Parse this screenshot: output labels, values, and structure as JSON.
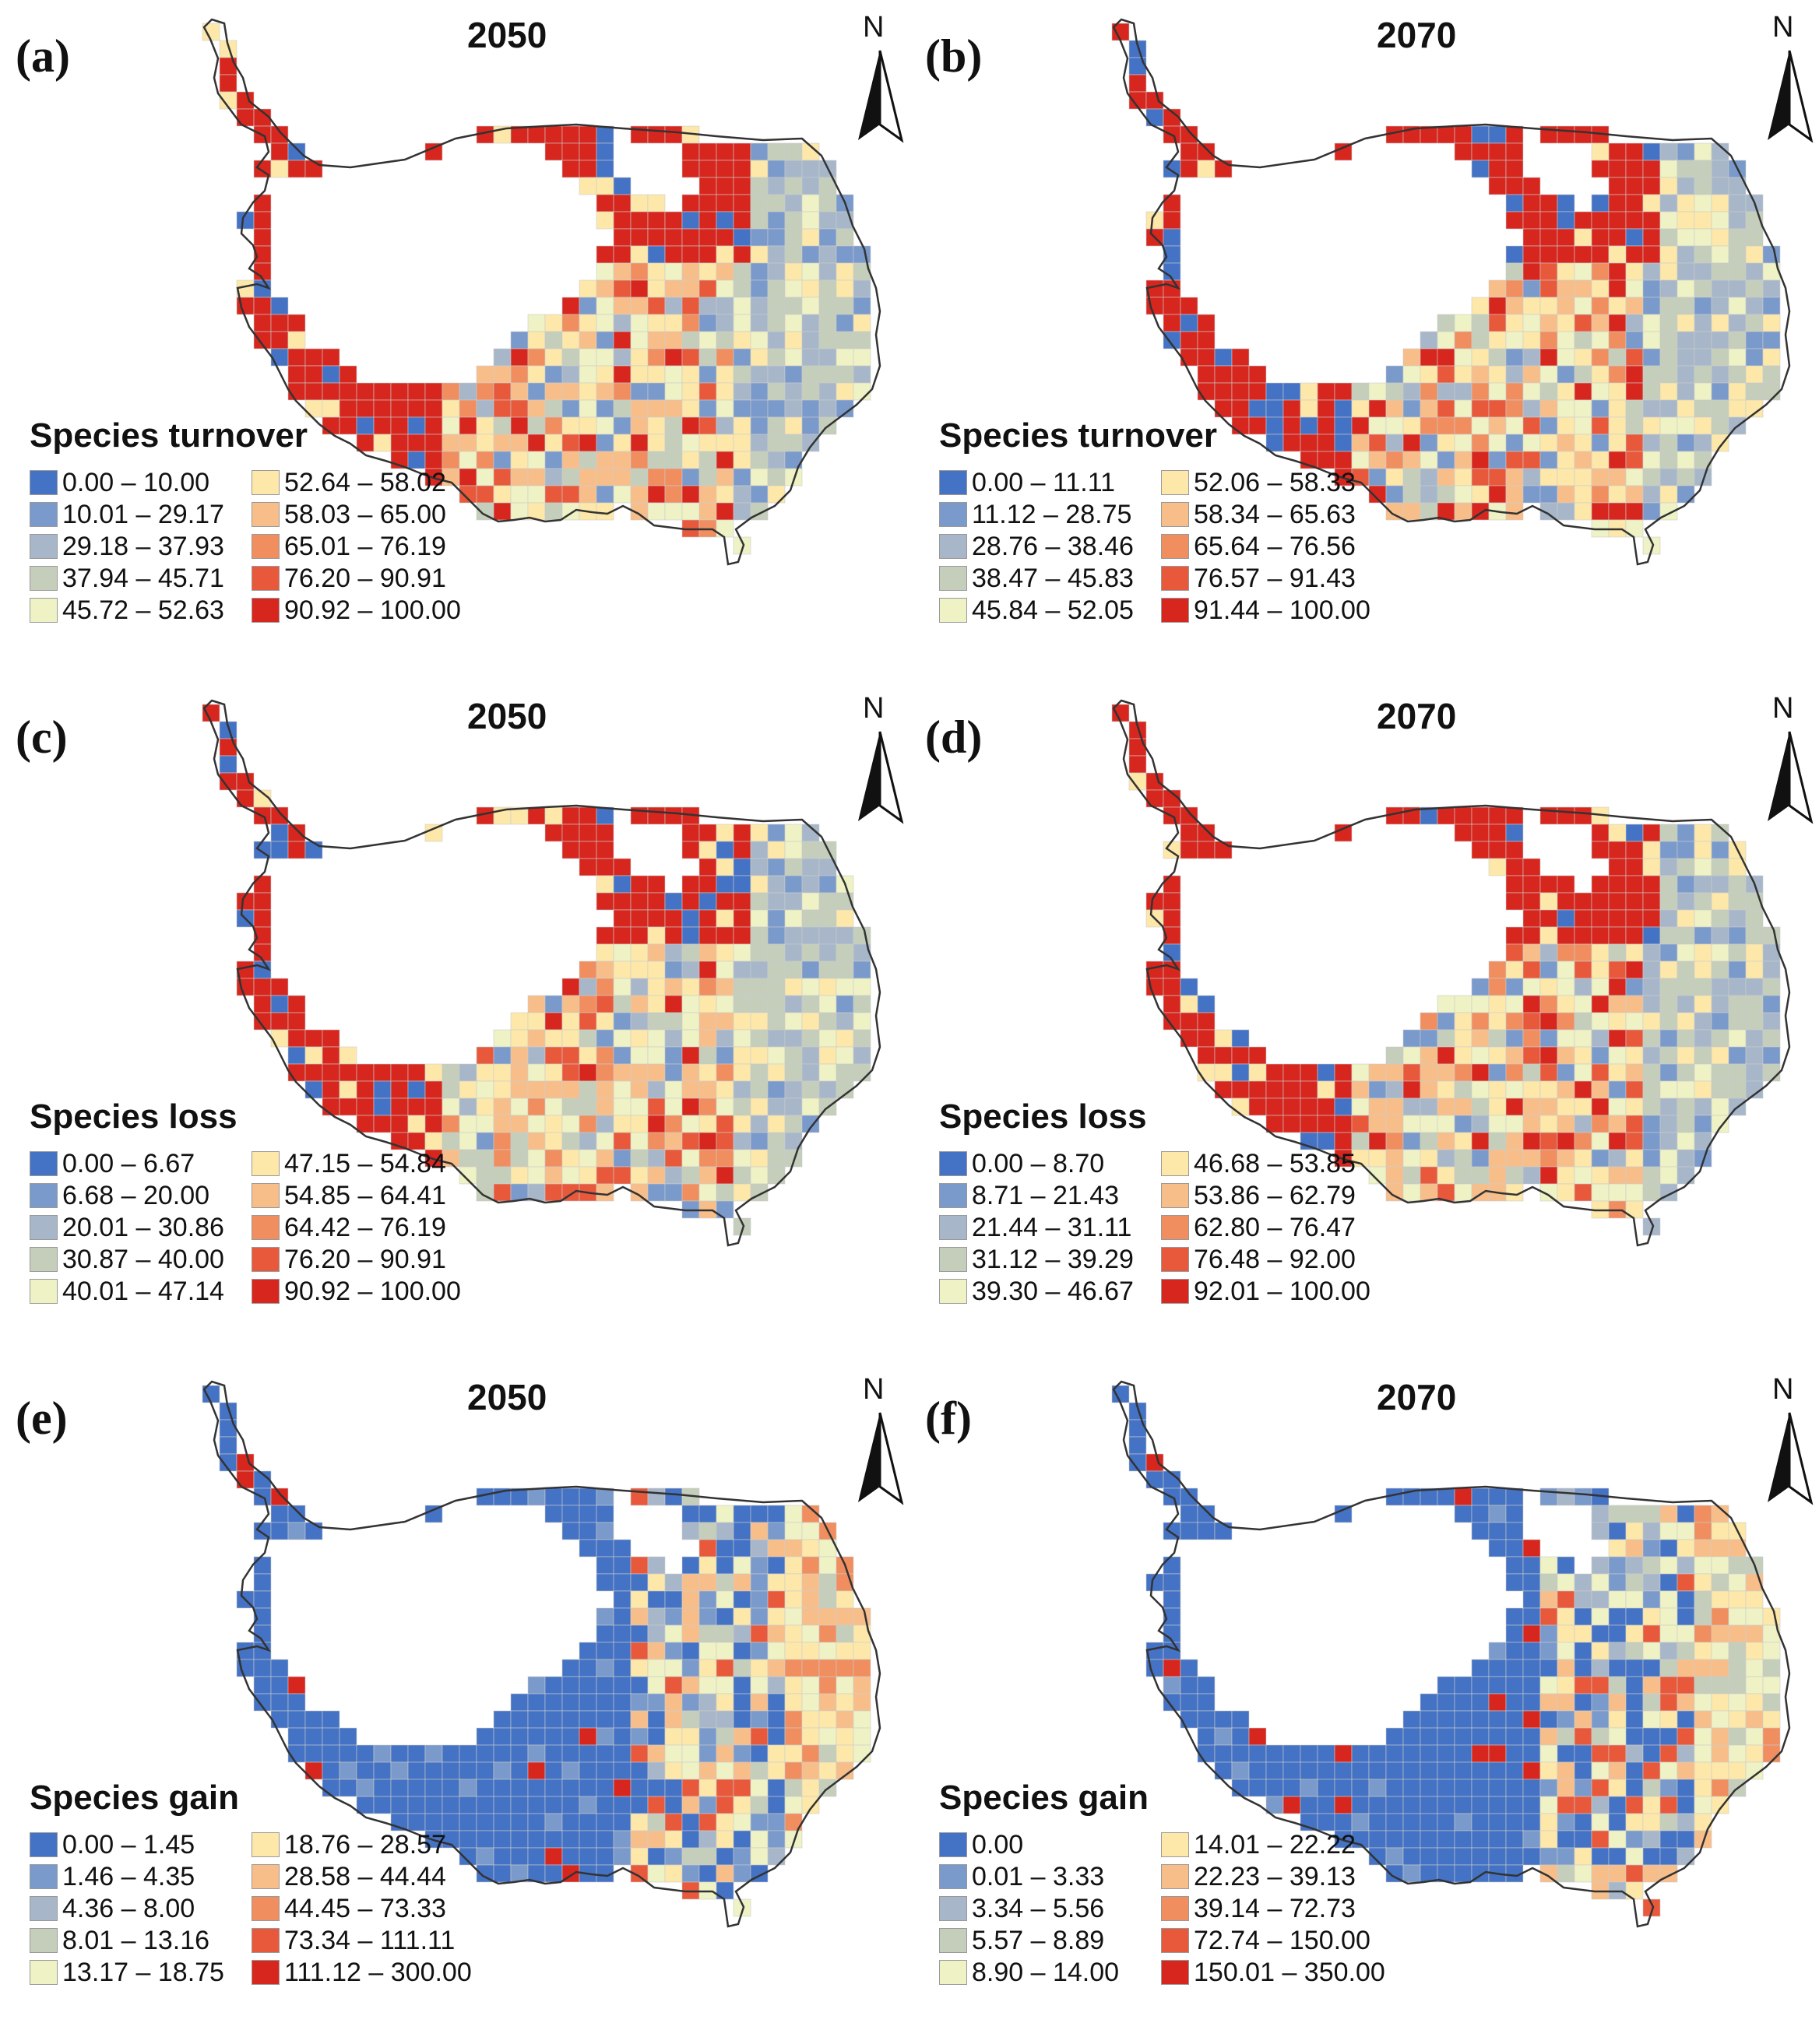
{
  "palette": [
    "#4472C4",
    "#7A9ACB",
    "#A7B7C9",
    "#C4CEBB",
    "#EEF2C4",
    "#FDE8AA",
    "#F8BE8A",
    "#F08E60",
    "#E8593C",
    "#D7261E"
  ],
  "colors": {
    "outline": "#333333",
    "grid": "#cccccc",
    "background": "#ffffff"
  },
  "north_icon": "north-arrow-icon",
  "panels": [
    {
      "letter": "(a)",
      "year": "2050",
      "north": "N",
      "legend_title": "Species turnover",
      "classes": [
        "0.00 – 10.00",
        "10.01 – 29.17",
        "29.18 – 37.93",
        "37.94 – 45.71",
        "45.72 – 52.63",
        "52.64 – 58.02",
        "58.03 – 65.00",
        "65.01 – 76.19",
        "76.20 – 90.91",
        "90.92 – 100.00"
      ]
    },
    {
      "letter": "(b)",
      "year": "2070",
      "north": "N",
      "legend_title": "Species turnover",
      "classes": [
        "0.00 – 11.11",
        "11.12 – 28.75",
        "28.76 – 38.46",
        "38.47 – 45.83",
        "45.84 – 52.05",
        "52.06 – 58.33",
        "58.34 – 65.63",
        "65.64 – 76.56",
        "76.57 – 91.43",
        "91.44 – 100.00"
      ]
    },
    {
      "letter": "(c)",
      "year": "2050",
      "north": "N",
      "legend_title": "Species loss",
      "classes": [
        "0.00 – 6.67",
        "6.68 – 20.00",
        "20.01 – 30.86",
        "30.87 – 40.00",
        "40.01 – 47.14",
        "47.15 – 54.84",
        "54.85 – 64.41",
        "64.42 – 76.19",
        "76.20 – 90.91",
        "90.92 – 100.00"
      ]
    },
    {
      "letter": "(d)",
      "year": "2070",
      "north": "N",
      "legend_title": "Species loss",
      "classes": [
        "0.00 – 8.70",
        "8.71 – 21.43",
        "21.44 – 31.11",
        "31.12 – 39.29",
        "39.30 – 46.67",
        "46.68 – 53.85",
        "53.86 – 62.79",
        "62.80 – 76.47",
        "76.48 – 92.00",
        "92.01 – 100.00"
      ]
    },
    {
      "letter": "(e)",
      "year": "2050",
      "north": "N",
      "legend_title": "Species gain",
      "classes": [
        "0.00 – 1.45",
        "1.46 – 4.35",
        "4.36 – 8.00",
        "8.01 – 13.16",
        "13.17 – 18.75",
        "18.76 – 28.57",
        "28.58 – 44.44",
        "44.45 – 73.33",
        "73.34 – 111.11",
        "111.12 – 300.00"
      ]
    },
    {
      "letter": "(f)",
      "year": "2070",
      "north": "N",
      "legend_title": "Species gain",
      "classes": [
        "0.00",
        "0.01 – 3.33",
        "3.34 – 5.56",
        "5.57 – 8.89",
        "8.90 – 14.00",
        "14.01 – 22.22",
        "22.23 – 39.13",
        "39.14 – 72.73",
        "72.74 – 150.00",
        "150.01 – 350.00"
      ]
    }
  ]
}
